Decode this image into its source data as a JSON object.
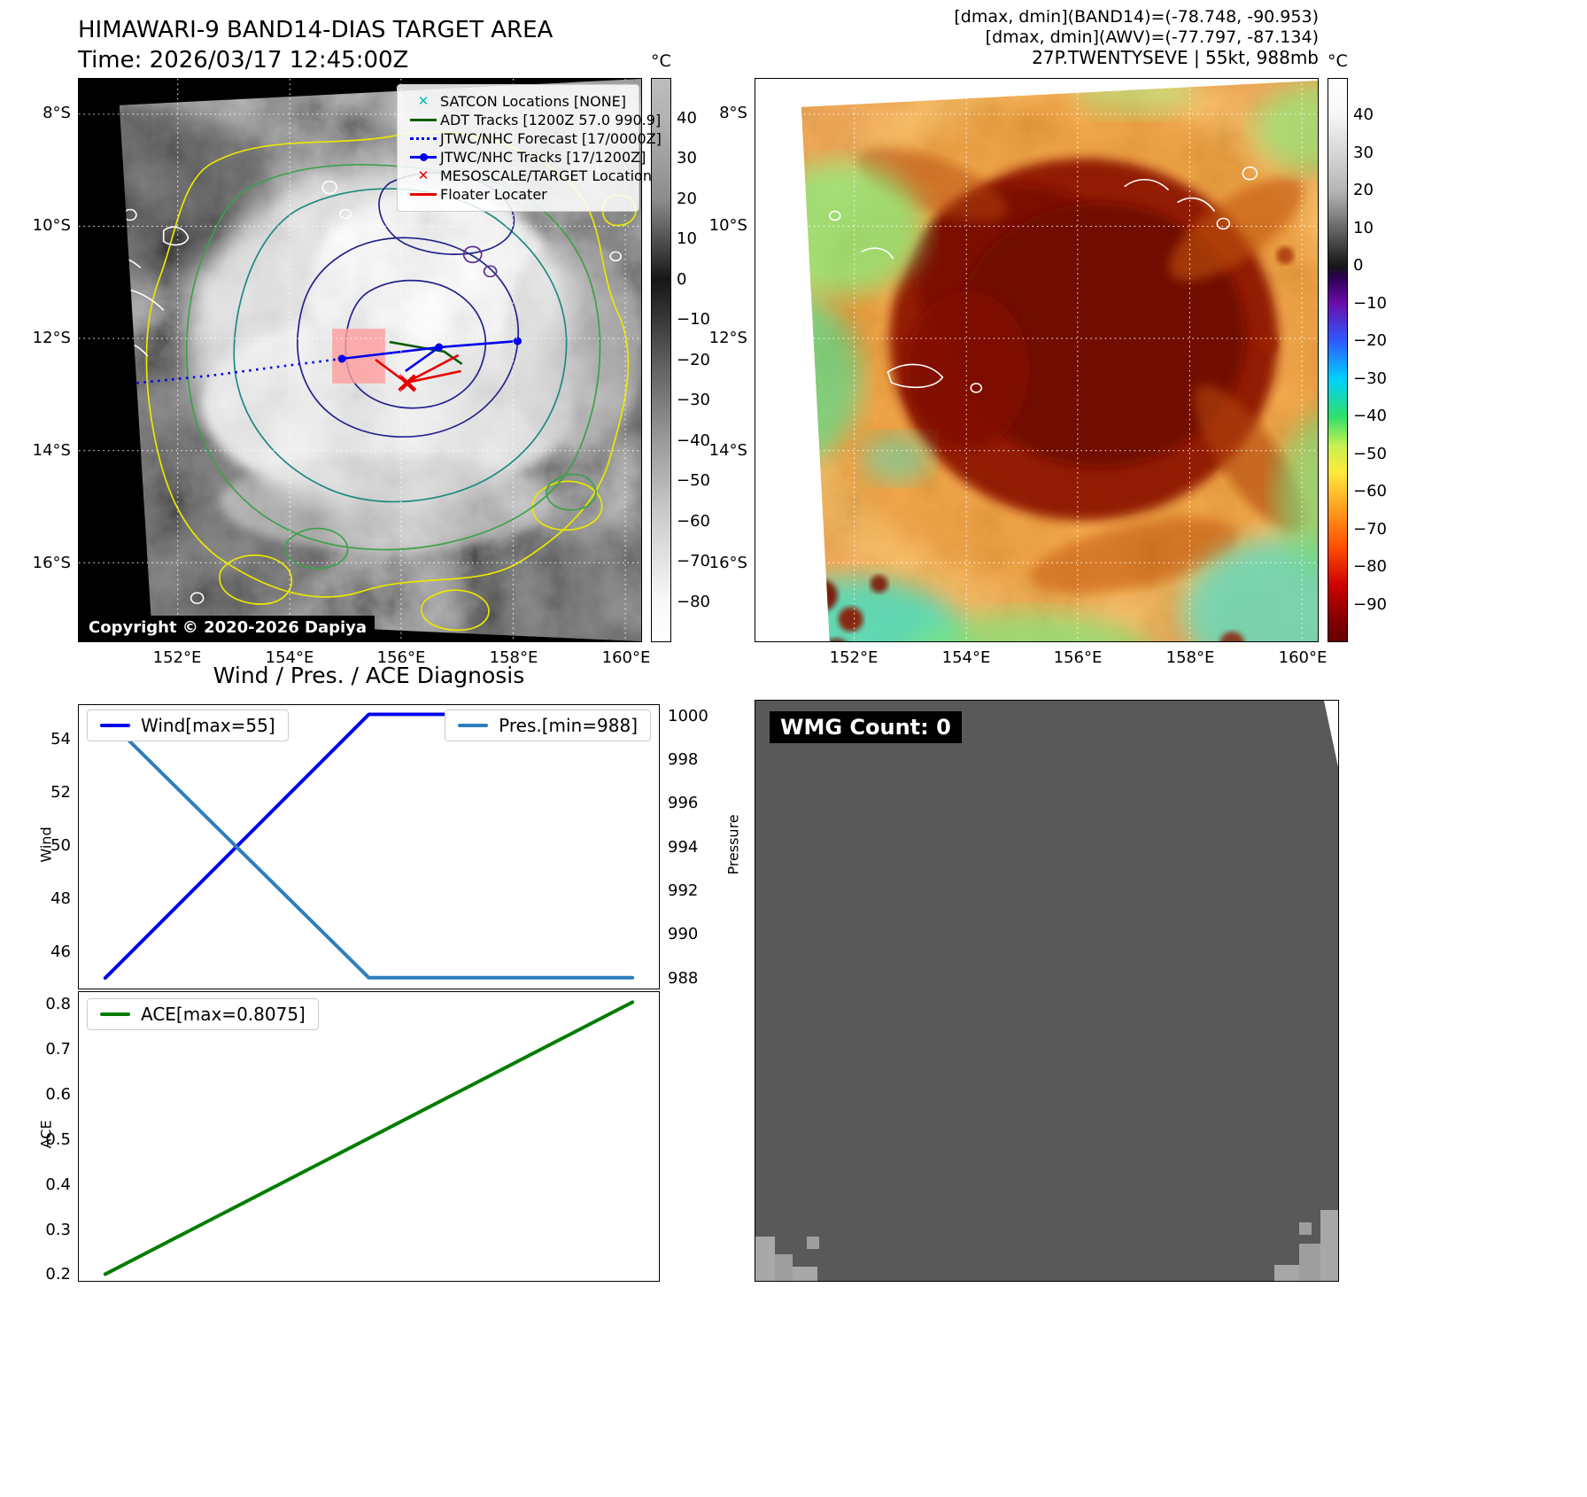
{
  "panel_band14": {
    "title": "HIMAWARI-9 BAND14-DIAS TARGET AREA",
    "time_line": "Time: 2026/03/17 12:45:00Z",
    "copyright": "Copyright © 2020-2026 Dapiya",
    "legend": [
      {
        "label": "SATCON Locations [NONE]",
        "marker": "x",
        "color": "#00bcbc"
      },
      {
        "label": "ADT Tracks [1200Z 57.0 990.9]",
        "marker": "line",
        "color": "#0b5d0b"
      },
      {
        "label": "JTWC/NHC Forecast [17/0000Z]",
        "marker": "dotted",
        "color": "#0000ee"
      },
      {
        "label": "JTWC/NHC Tracks [17/1200Z]",
        "marker": "line-dot",
        "color": "#0000ee"
      },
      {
        "label": "MESOSCALE/TARGET Location",
        "marker": "x",
        "color": "#e60000"
      },
      {
        "label": "Floater Locater",
        "marker": "line",
        "color": "#e60000"
      }
    ],
    "lat_ticks": [
      "8°S",
      "10°S",
      "12°S",
      "14°S",
      "16°S"
    ],
    "lon_ticks": [
      "152°E",
      "154°E",
      "156°E",
      "158°E",
      "160°E"
    ],
    "colorbar": {
      "unit": "°C",
      "ticks": [
        "40",
        "30",
        "20",
        "10",
        "0",
        "−10",
        "−20",
        "−30",
        "−40",
        "−50",
        "−60",
        "−70",
        "−80"
      ]
    }
  },
  "panel_awv": {
    "header_lines": [
      "[dmax, dmin](BAND14)=(-78.748, -90.953)",
      "[dmax, dmin](AWV)=(-77.797, -87.134)",
      "27P.TWENTYSEVE | 55kt, 988mb"
    ],
    "lat_ticks": [
      "8°S",
      "10°S",
      "12°S",
      "14°S",
      "16°S"
    ],
    "lon_ticks": [
      "152°E",
      "154°E",
      "156°E",
      "158°E",
      "160°E"
    ],
    "colorbar": {
      "unit": "°C",
      "ticks": [
        "40",
        "30",
        "20",
        "10",
        "0",
        "−10",
        "−20",
        "−30",
        "−40",
        "−50",
        "−60",
        "−70",
        "−80",
        "−90"
      ]
    }
  },
  "diagnosis": {
    "title": "Wind / Pres. / ACE Diagnosis"
  },
  "wmg": {
    "label": "WMG Count: 0"
  },
  "chart_data": [
    {
      "type": "line",
      "title": "Wind / Pres. / ACE Diagnosis",
      "x": [
        0,
        0.5,
        1
      ],
      "xlim": [
        -0.05,
        1.05
      ],
      "series": [
        {
          "name": "Wind[max=55]",
          "color": "#0000ee",
          "width": 4,
          "axis": "left",
          "values": [
            45,
            55,
            55
          ]
        },
        {
          "name": "Pres.[min=988]",
          "color": "#2e7ebc",
          "width": 4,
          "axis": "right",
          "values": [
            1000,
            988,
            988
          ]
        }
      ],
      "left": {
        "label": "Wind",
        "ticks": [
          46,
          48,
          50,
          52,
          54
        ],
        "lim": [
          44.6,
          55.35
        ]
      },
      "right": {
        "label": "Pressure",
        "ticks": [
          988,
          990,
          992,
          994,
          996,
          998,
          1000
        ],
        "lim": [
          987.5,
          1000.55
        ]
      }
    },
    {
      "type": "line",
      "x": [
        0,
        1
      ],
      "xlim": [
        -0.05,
        1.05
      ],
      "series": [
        {
          "name": "ACE[max=0.8075]",
          "color": "#007d00",
          "width": 4,
          "axis": "left",
          "values": [
            0.2,
            0.8075
          ]
        }
      ],
      "left": {
        "label": "ACE",
        "ticks": [
          0.2,
          0.3,
          0.4,
          0.5,
          0.6,
          0.7,
          0.8
        ],
        "lim": [
          0.185,
          0.83
        ]
      }
    }
  ]
}
